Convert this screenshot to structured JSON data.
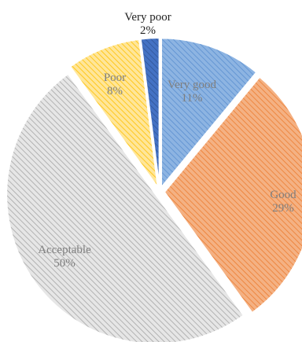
{
  "chart_data": {
    "type": "pie",
    "title": "",
    "slices": [
      {
        "name": "Very good",
        "label_value": "11%",
        "value": 11,
        "color": "#8db4e2",
        "hatch": "#5b8fd0",
        "text_color": "#7f7f7f"
      },
      {
        "name": "Good",
        "label_value": "29%",
        "value": 29,
        "color": "#f4b183",
        "hatch": "#ed7d31",
        "text_color": "#7f7f7f"
      },
      {
        "name": "Acceptable",
        "label_value": "50%",
        "value": 50,
        "color": "#e6e6e6",
        "hatch": "#a6a6a6",
        "text_color": "#7f7f7f"
      },
      {
        "name": "Poor",
        "label_value": "8%",
        "value": 8,
        "color": "#ffe699",
        "hatch": "#ffc000",
        "text_color": "#7f7f7f"
      },
      {
        "name": "Very poor",
        "label_value": "2%",
        "value": 2,
        "color": "#4472c4",
        "hatch": "#2f5597",
        "text_color": "#222222"
      }
    ],
    "legend": "none"
  }
}
